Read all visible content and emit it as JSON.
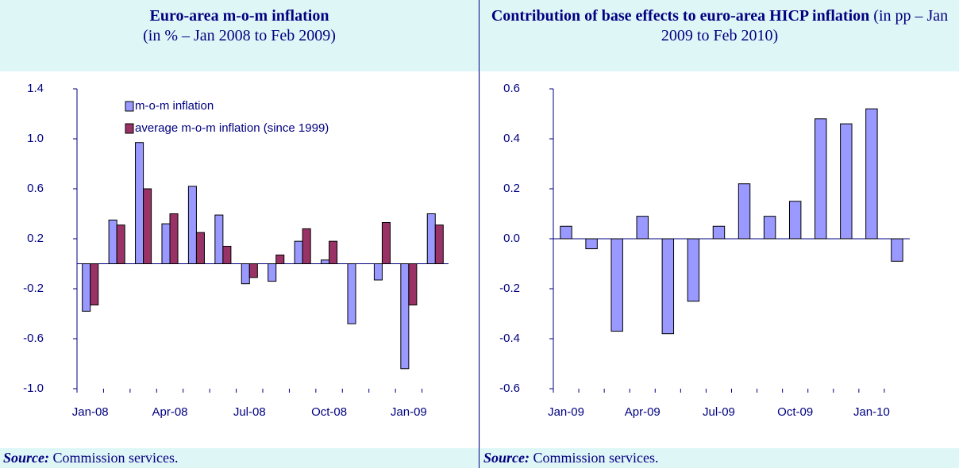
{
  "chart_data": [
    {
      "type": "bar",
      "title": "Euro-area m-o-m inflation",
      "subtitle": "(in % – Jan 2008 to Feb 2009)",
      "categories": [
        "Jan-08",
        null,
        null,
        "Apr-08",
        null,
        null,
        "Jul-08",
        null,
        null,
        "Oct-08",
        null,
        null,
        "Jan-09",
        null
      ],
      "series": [
        {
          "name": "m-o-m inflation",
          "color": "#9999ff",
          "values": [
            -0.38,
            0.35,
            0.97,
            0.32,
            0.62,
            0.39,
            -0.16,
            -0.14,
            0.18,
            0.03,
            -0.48,
            -0.13,
            -0.84,
            0.4
          ]
        },
        {
          "name": "average m-o-m inflation (since 1999)",
          "color": "#993366",
          "values": [
            -0.33,
            0.31,
            0.6,
            0.4,
            0.25,
            0.14,
            -0.11,
            0.07,
            0.28,
            0.18,
            0.0,
            0.33,
            -0.33,
            0.31
          ]
        }
      ],
      "ylim": [
        -1,
        1.4
      ],
      "yticks": [
        {
          "value": -1,
          "label": "-1.0"
        },
        -0.6,
        -0.2,
        0.2,
        0.6,
        {
          "value": 1,
          "label": "1.0"
        },
        1.4
      ],
      "legend": "top-left",
      "source_label": "Source:",
      "source_text": "Commission services."
    },
    {
      "type": "bar",
      "title": "Contribution of base effects to euro-area HICP inflation",
      "subtitle": "(in pp – Jan 2009 to Feb 2010)",
      "categories": [
        "Jan-09",
        null,
        null,
        "Apr-09",
        null,
        null,
        "Jul-09",
        null,
        null,
        "Oct-09",
        null,
        null,
        "Jan-10",
        null
      ],
      "series": [
        {
          "color": "#9999ff",
          "values": [
            0.05,
            -0.04,
            -0.37,
            0.09,
            -0.38,
            -0.25,
            0.05,
            0.22,
            0.09,
            0.15,
            0.48,
            0.46,
            0.52,
            -0.09
          ]
        }
      ],
      "ylim": [
        -0.6,
        0.6
      ],
      "yticks": [
        -0.6,
        -0.4,
        -0.2,
        {
          "value": 0,
          "label": "0.0"
        },
        0.2,
        0.4,
        0.6
      ],
      "source_label": "Source:",
      "source_text": "Commission services."
    }
  ]
}
